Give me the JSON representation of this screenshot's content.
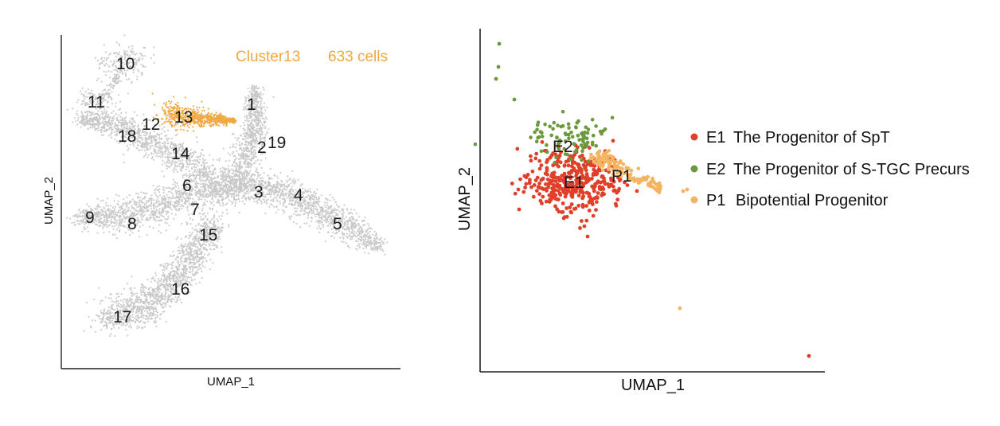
{
  "colors": {
    "background_cells": "#c8c8c8",
    "highlight": "#f0a840",
    "E1": "#e0402a",
    "E2": "#6b9a3c",
    "P1": "#f4b562",
    "axis": "#222222"
  },
  "chart_data": [
    {
      "type": "scatter",
      "xlabel": "UMAP_1",
      "ylabel": "UMAP_2",
      "grid": false,
      "annotation": {
        "cluster": "Cluster13",
        "cells": "633 cells"
      },
      "highlighted_cluster": "13",
      "cluster_labels": [
        "10",
        "11",
        "12",
        "13",
        "18",
        "1",
        "2",
        "19",
        "14",
        "6",
        "3",
        "4",
        "9",
        "8",
        "7",
        "15",
        "5",
        "16",
        "17"
      ]
    },
    {
      "type": "scatter",
      "xlabel": "UMAP_1",
      "ylabel": "UMAP_2",
      "grid": false,
      "legend_position": "right",
      "series": [
        {
          "name": "E1",
          "label": "E1",
          "description": "The Progenitor of SpT",
          "color": "#e0402a"
        },
        {
          "name": "E2",
          "label": "E2",
          "description": "The Progenitor of S-TGC Precurs",
          "color": "#6b9a3c"
        },
        {
          "name": "P1",
          "label": "P1",
          "description": "Bipotential Progenitor",
          "color": "#f4b562"
        }
      ],
      "cluster_labels": [
        "E2",
        "E1",
        "P1"
      ]
    }
  ]
}
